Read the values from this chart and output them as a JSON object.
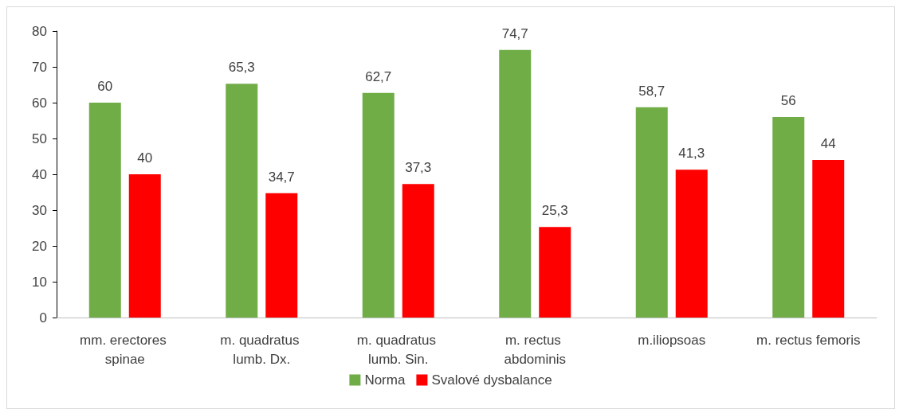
{
  "chart_data": {
    "type": "bar",
    "categories": [
      "mm. erectores spinae",
      "m. quadratus lumb. Dx.",
      "m. quadratus lumb. Sin.",
      "m. rectus abdominis",
      "m.iliopsoas",
      "m. rectus femoris"
    ],
    "series": [
      {
        "name": "Norma",
        "color": "#70ad47",
        "values": [
          60,
          65.3,
          62.7,
          74.7,
          58.7,
          56
        ],
        "value_labels": [
          "60",
          "65,3",
          "62,7",
          "74,7",
          "58,7",
          "56"
        ]
      },
      {
        "name": "Svalové dysbalance",
        "color": "#ff0000",
        "values": [
          40,
          34.7,
          37.3,
          25.3,
          41.3,
          44
        ],
        "value_labels": [
          "40",
          "34,7",
          "37,3",
          "25,3",
          "41,3",
          "44"
        ]
      }
    ],
    "ylim": [
      0,
      80
    ],
    "yticks": [
      0,
      10,
      20,
      30,
      40,
      50,
      60,
      70,
      80
    ],
    "grid": false,
    "legend": "bottom"
  }
}
